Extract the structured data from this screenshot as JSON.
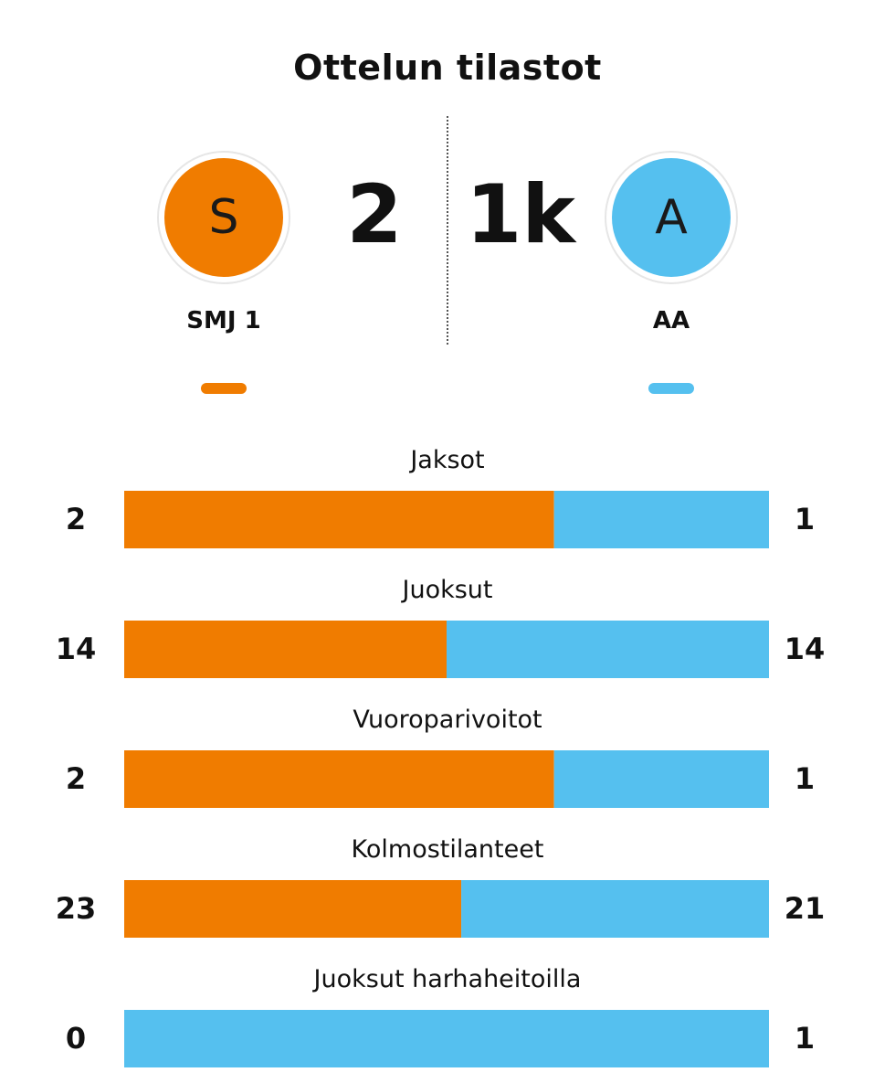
{
  "title": "Ottelun tilastot",
  "colors": {
    "home": "#f07c00",
    "away": "#55c0ef"
  },
  "home": {
    "initial": "S",
    "name": "SMJ 1",
    "score": "2"
  },
  "away": {
    "initial": "A",
    "name": "AA",
    "score": "1k"
  },
  "chart_data": {
    "type": "bar",
    "orientation": "horizontal-stacked-comparison",
    "series": [
      {
        "name": "SMJ 1",
        "values": [
          2,
          14,
          2,
          23,
          0
        ]
      },
      {
        "name": "AA",
        "values": [
          1,
          14,
          1,
          21,
          1
        ]
      }
    ],
    "categories": [
      "Jaksot",
      "Juoksut",
      "Vuoroparivoitot",
      "Kolmostilanteet",
      "Juoksut harhaheitoilla"
    ],
    "rows": [
      {
        "label": "Jaksot",
        "home": 2,
        "away": 1
      },
      {
        "label": "Juoksut",
        "home": 14,
        "away": 14
      },
      {
        "label": "Vuoroparivoitot",
        "home": 2,
        "away": 1
      },
      {
        "label": "Kolmostilanteet",
        "home": 23,
        "away": 21
      },
      {
        "label": "Juoksut harhaheitoilla",
        "home": 0,
        "away": 1
      }
    ]
  }
}
